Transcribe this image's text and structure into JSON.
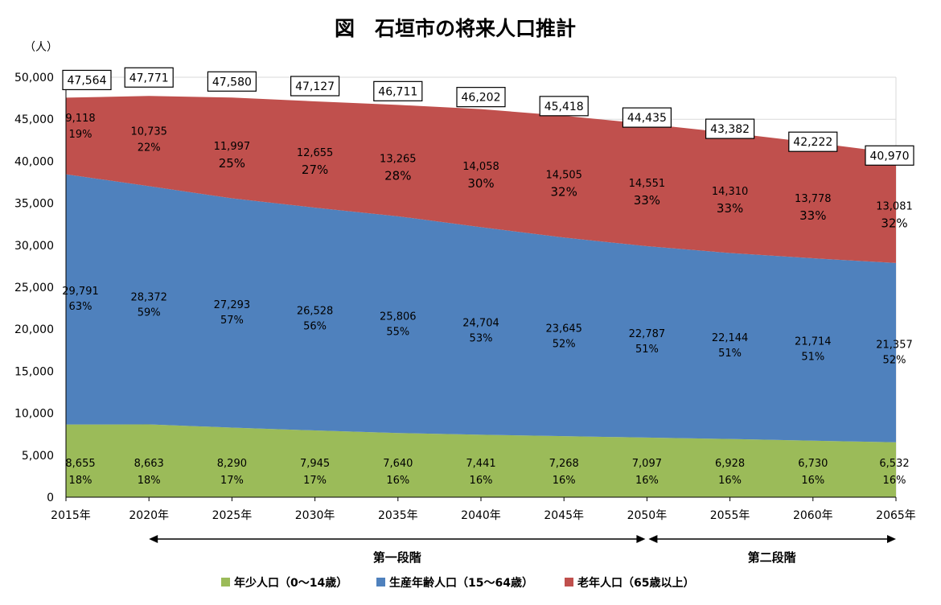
{
  "chart_data": {
    "type": "area",
    "stacked": true,
    "title": "図　石垣市の将来人口推計",
    "ylabel": "（人）",
    "xlabel": "",
    "ylim": [
      0,
      50000
    ],
    "ytick_labels": [
      "0",
      "5,000",
      "10,000",
      "15,000",
      "20,000",
      "25,000",
      "30,000",
      "35,000",
      "40,000",
      "45,000",
      "50,000"
    ],
    "categories": [
      "2015年",
      "2020年",
      "2025年",
      "2030年",
      "2035年",
      "2040年",
      "2045年",
      "2050年",
      "2055年",
      "2060年",
      "2065年"
    ],
    "series": [
      {
        "name": "年少人口（0～14歳）",
        "color": "#9bbb59",
        "values": [
          8655,
          8663,
          8290,
          7945,
          7640,
          7441,
          7268,
          7097,
          6928,
          6730,
          6532
        ],
        "value_labels": [
          "8,655",
          "8,663",
          "8,290",
          "7,945",
          "7,640",
          "7,441",
          "7,268",
          "7,097",
          "6,928",
          "6,730",
          "6,532"
        ],
        "percent_labels": [
          "18%",
          "18%",
          "17%",
          "17%",
          "16%",
          "16%",
          "16%",
          "16%",
          "16%",
          "16%",
          "16%"
        ]
      },
      {
        "name": "生産年齢人口（15～64歳）",
        "color": "#4f81bd",
        "values": [
          29791,
          28372,
          27293,
          26528,
          25806,
          24704,
          23645,
          22787,
          22144,
          21714,
          21357
        ],
        "value_labels": [
          "29,791",
          "28,372",
          "27,293",
          "26,528",
          "25,806",
          "24,704",
          "23,645",
          "22,787",
          "22,144",
          "21,714",
          "21,357"
        ],
        "percent_labels": [
          "63%",
          "59%",
          "57%",
          "56%",
          "55%",
          "53%",
          "52%",
          "51%",
          "51%",
          "51%",
          "52%"
        ]
      },
      {
        "name": "老年人口（65歳以上）",
        "color": "#c0504d",
        "values": [
          9118,
          10735,
          11997,
          12655,
          13265,
          14058,
          14505,
          14551,
          14310,
          13778,
          13081
        ],
        "value_labels": [
          "9,118",
          "10,735",
          "11,997",
          "12,655",
          "13,265",
          "14,058",
          "14,505",
          "14,551",
          "14,310",
          "13,778",
          "13,081"
        ],
        "percent_labels": [
          "19%",
          "22%",
          "25%",
          "27%",
          "28%",
          "30%",
          "32%",
          "33%",
          "33%",
          "33%",
          "32%"
        ]
      }
    ],
    "totals": [
      47564,
      47771,
      47580,
      47127,
      46711,
      46202,
      45418,
      44435,
      43382,
      42222,
      40970
    ],
    "total_labels": [
      "47,564",
      "47,771",
      "47,580",
      "47,127",
      "46,711",
      "46,202",
      "45,418",
      "44,435",
      "43,382",
      "42,222",
      "40,970"
    ],
    "phases": [
      {
        "label": "第一段階",
        "from": "2020年",
        "to": "2050年"
      },
      {
        "label": "第二段階",
        "from": "2050年",
        "to": "2065年"
      }
    ],
    "grid": true,
    "legend_position": "bottom"
  }
}
